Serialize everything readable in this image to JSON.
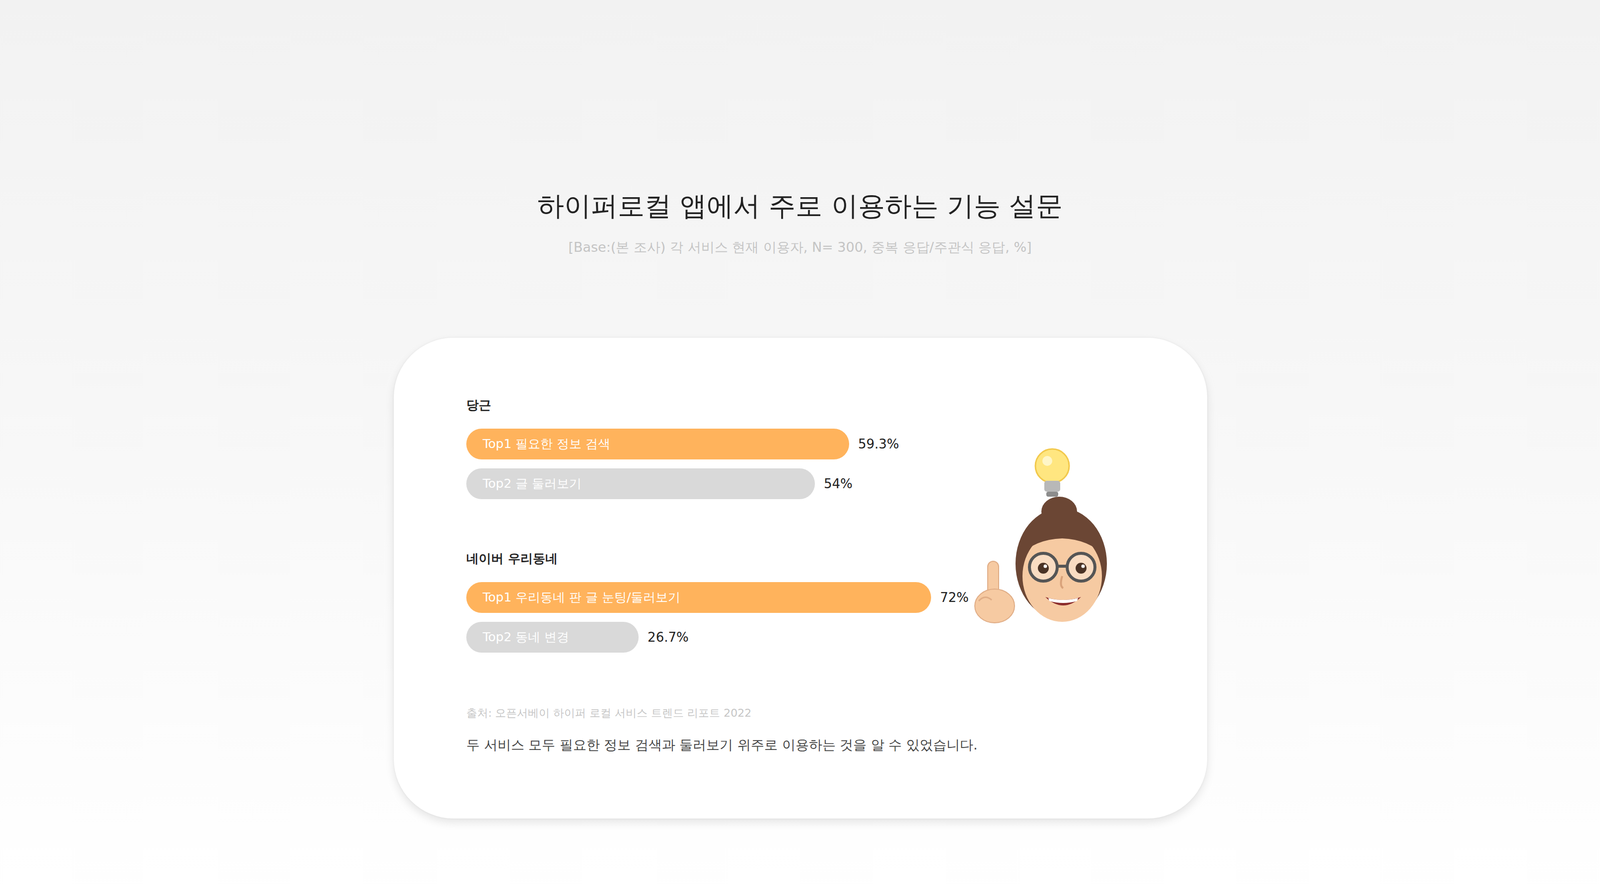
{
  "title": "하이퍼로컬 앱에서 주로 이용하는 기능 설문",
  "subtitle": "[Base:(본 조사) 각 서비스 현재 이용자, N= 300, 중복 응답/주관식 응답, %]",
  "chart_data": [
    {
      "type": "bar",
      "title": "당근",
      "orientation": "horizontal",
      "categories": [
        "Top1 필요한 정보 검색",
        "Top2 글 둘러보기"
      ],
      "values": [
        59.3,
        54
      ],
      "value_labels": [
        "59.3%",
        "54%"
      ],
      "colors": [
        "#ffb35c",
        "#d9d9d9"
      ],
      "data_labels": true,
      "xlim": [
        0,
        100
      ],
      "tick_labels": false
    },
    {
      "type": "bar",
      "title": "네이버 우리동네",
      "orientation": "horizontal",
      "categories": [
        "Top1 우리동네 판 글 눈팅/둘러보기",
        "Top2 동네 변경"
      ],
      "values": [
        72,
        26.7
      ],
      "value_labels": [
        "72%",
        "26.7%"
      ],
      "colors": [
        "#ffb35c",
        "#d9d9d9"
      ],
      "data_labels": true,
      "xlim": [
        0,
        100
      ],
      "tick_labels": false
    }
  ],
  "source": "출처: 오픈서베이 하이퍼 로컬 서비스 트렌드 리포트 2022",
  "note": "두 서비스 모두 필요한 정보 검색과 둘러보기 위주로 이용하는 것을 알 수 있었습니다."
}
